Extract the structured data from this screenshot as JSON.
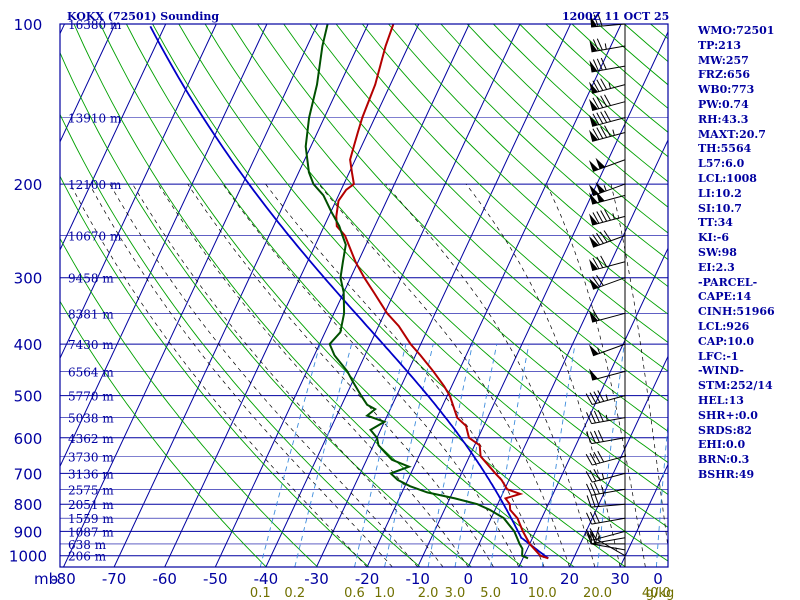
{
  "header": {
    "station": "KOKX (72501) Sounding",
    "time": "1200Z 11 OCT 25"
  },
  "indices": [
    "WMO:72501",
    "TP:213",
    "MW:257",
    "FRZ:656",
    "WB0:773",
    "PW:0.74",
    "RH:43.3",
    "MAXT:20.7",
    "TH:5564",
    "L57:6.0",
    "LCL:1008",
    "LI:10.2",
    "SI:10.7",
    "TT:34",
    "KI:-6",
    "SW:98",
    "EI:2.3",
    "-PARCEL-",
    "CAPE:14",
    "CINH:51966",
    "LCL:926",
    "CAP:10.0",
    "LFC:-1",
    "-WIND-",
    "STM:252/14",
    "HEL:13",
    "SHR+:0.0",
    "SRDS:82",
    "EHI:0.0",
    "BRN:0.3",
    "BSHR:49"
  ],
  "colors": {
    "frame": "#0000a0",
    "isotherm": "#0000a0",
    "dry_adiabat": "#00a000",
    "moist_adiabat": "#000000",
    "mixing_ratio": "#3c8cdc",
    "temperature": "#b40000",
    "dewpoint": "#005000",
    "parcel": "#0000c8",
    "wind_barbs": "#000000"
  },
  "chart_data": {
    "type": "skew-t log-p sounding",
    "pressure_axis": {
      "unit_label": "mb",
      "ticks": [
        100,
        200,
        300,
        400,
        500,
        600,
        700,
        800,
        900,
        1000
      ],
      "range": [
        1050,
        100
      ],
      "scale": "log"
    },
    "temperature_axis": {
      "ticks": [
        -80,
        -70,
        -60,
        -50,
        -40,
        -30,
        -20,
        -10,
        0,
        10,
        20,
        30
      ],
      "labels": [
        "-80",
        "-70",
        "-60",
        "-50",
        "-40",
        "-30",
        "-20",
        "-10",
        "0",
        "10",
        "20",
        "30"
      ]
    },
    "mixing_ratio_labels": [
      "0.1",
      "0.2",
      "0.6",
      "1.0",
      "2.0",
      "3.0",
      "5.0",
      "10.0",
      "20.0",
      "40.0"
    ],
    "mixing_ratio_unit": "g/kg",
    "height_labels": [
      {
        "p": 100,
        "text": "16380 m"
      },
      {
        "p": 150,
        "text": "13910 m"
      },
      {
        "p": 200,
        "text": "12100 m"
      },
      {
        "p": 250,
        "text": "10670 m"
      },
      {
        "p": 300,
        "text": "9458 m"
      },
      {
        "p": 350,
        "text": "8381 m"
      },
      {
        "p": 400,
        "text": "7430 m"
      },
      {
        "p": 450,
        "text": "6564 m"
      },
      {
        "p": 500,
        "text": "5770 m"
      },
      {
        "p": 550,
        "text": "5038 m"
      },
      {
        "p": 600,
        "text": "4362 m"
      },
      {
        "p": 650,
        "text": "3730 m"
      },
      {
        "p": 700,
        "text": "3136 m"
      },
      {
        "p": 750,
        "text": "2575 m"
      },
      {
        "p": 800,
        "text": "2051 m"
      },
      {
        "p": 850,
        "text": "1559 m"
      },
      {
        "p": 900,
        "text": "1087 m"
      },
      {
        "p": 950,
        "text": "638 m"
      },
      {
        "p": 1000,
        "text": "206 m"
      }
    ],
    "temperature_profile": [
      [
        1011,
        15.0
      ],
      [
        1000,
        13.2
      ],
      [
        950,
        10.0
      ],
      [
        900,
        7.5
      ],
      [
        850,
        5.2
      ],
      [
        820,
        3.0
      ],
      [
        800,
        2.4
      ],
      [
        780,
        1.0
      ],
      [
        765,
        3.5
      ],
      [
        750,
        0.5
      ],
      [
        720,
        -1.5
      ],
      [
        700,
        -3.3
      ],
      [
        650,
        -7.8
      ],
      [
        620,
        -9.0
      ],
      [
        600,
        -11.8
      ],
      [
        570,
        -13.5
      ],
      [
        550,
        -16.0
      ],
      [
        500,
        -19.5
      ],
      [
        480,
        -21.5
      ],
      [
        450,
        -25.0
      ],
      [
        420,
        -29.0
      ],
      [
        400,
        -32.0
      ],
      [
        370,
        -36.0
      ],
      [
        350,
        -39.5
      ],
      [
        320,
        -44.0
      ],
      [
        300,
        -47.3
      ],
      [
        280,
        -50.5
      ],
      [
        250,
        -55.0
      ],
      [
        240,
        -57.5
      ],
      [
        230,
        -58.5
      ],
      [
        215,
        -59.5
      ],
      [
        205,
        -59.0
      ],
      [
        200,
        -58.0
      ],
      [
        190,
        -59.5
      ],
      [
        180,
        -61.0
      ],
      [
        170,
        -61.5
      ],
      [
        160,
        -62.0
      ],
      [
        150,
        -62.5
      ],
      [
        130,
        -63.0
      ],
      [
        110,
        -64.5
      ],
      [
        100,
        -65.0
      ]
    ],
    "dewpoint_profile": [
      [
        1011,
        11.0
      ],
      [
        1000,
        9.6
      ],
      [
        970,
        9.0
      ],
      [
        950,
        8.0
      ],
      [
        900,
        5.8
      ],
      [
        850,
        2.5
      ],
      [
        820,
        -1.0
      ],
      [
        800,
        -4.0
      ],
      [
        780,
        -9.0
      ],
      [
        760,
        -15.0
      ],
      [
        740,
        -19.0
      ],
      [
        720,
        -22.0
      ],
      [
        700,
        -24.0
      ],
      [
        680,
        -21.0
      ],
      [
        660,
        -25.0
      ],
      [
        640,
        -27.0
      ],
      [
        620,
        -29.0
      ],
      [
        600,
        -30.0
      ],
      [
        580,
        -32.0
      ],
      [
        560,
        -30.0
      ],
      [
        545,
        -34.0
      ],
      [
        530,
        -33.0
      ],
      [
        520,
        -35.0
      ],
      [
        500,
        -37.0
      ],
      [
        470,
        -40.0
      ],
      [
        450,
        -42.0
      ],
      [
        420,
        -46.0
      ],
      [
        400,
        -48.0
      ],
      [
        380,
        -47.0
      ],
      [
        350,
        -48.0
      ],
      [
        320,
        -50.0
      ],
      [
        300,
        -52.0
      ],
      [
        280,
        -53.0
      ],
      [
        260,
        -54.0
      ],
      [
        250,
        -55.5
      ],
      [
        240,
        -57.0
      ],
      [
        225,
        -60.0
      ],
      [
        210,
        -63.0
      ],
      [
        200,
        -66.0
      ],
      [
        190,
        -68.0
      ],
      [
        170,
        -71.0
      ],
      [
        150,
        -73.0
      ],
      [
        130,
        -74.5
      ],
      [
        110,
        -77.0
      ],
      [
        100,
        -78.0
      ]
    ],
    "parcel_path": {
      "surface_temp": 15.0,
      "lcl_pressure": 926,
      "lcl_temp": 7.8
    },
    "wind_barbs_axis": {
      "x_label": "0"
    },
    "wind_profile": [
      [
        1000,
        300,
        10
      ],
      [
        975,
        280,
        15
      ],
      [
        950,
        270,
        20
      ],
      [
        925,
        260,
        25
      ],
      [
        900,
        255,
        25
      ],
      [
        850,
        260,
        30
      ],
      [
        800,
        265,
        30
      ],
      [
        750,
        260,
        35
      ],
      [
        700,
        255,
        35
      ],
      [
        650,
        255,
        40
      ],
      [
        600,
        260,
        40
      ],
      [
        550,
        260,
        45
      ],
      [
        500,
        255,
        45
      ],
      [
        450,
        255,
        50
      ],
      [
        400,
        250,
        55
      ],
      [
        350,
        255,
        60
      ],
      [
        300,
        250,
        70
      ],
      [
        280,
        255,
        80
      ],
      [
        250,
        250,
        90
      ],
      [
        230,
        255,
        95
      ],
      [
        210,
        255,
        100
      ],
      [
        200,
        250,
        105
      ],
      [
        180,
        250,
        100
      ],
      [
        160,
        255,
        95
      ],
      [
        150,
        255,
        90
      ],
      [
        140,
        255,
        90
      ],
      [
        130,
        255,
        85
      ],
      [
        120,
        260,
        80
      ],
      [
        110,
        260,
        75
      ],
      [
        100,
        265,
        70
      ]
    ]
  }
}
